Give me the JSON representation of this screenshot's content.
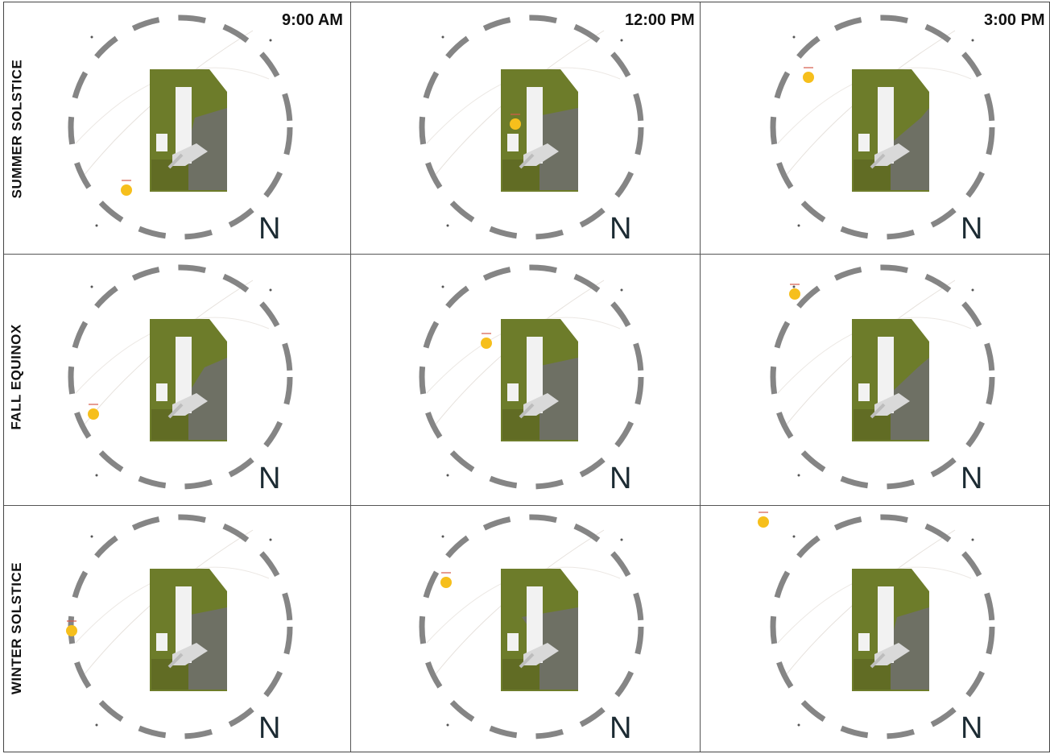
{
  "columns": [
    {
      "time_label": "9:00 AM"
    },
    {
      "time_label": "12:00 PM"
    },
    {
      "time_label": "3:00 PM"
    }
  ],
  "rows": [
    {
      "season_label": "SUMMER SOLSTICE"
    },
    {
      "season_label": "FALL EQUINOX"
    },
    {
      "season_label": "WINTER SOLSTICE"
    }
  ],
  "north_label": "N",
  "colors": {
    "site_green": "#6d7c2a",
    "sun": "#f6bf1c",
    "compass_dash": "#858585",
    "shadow": "#6e6e6e",
    "building": "#f2f2f2",
    "sun_label": "#d65a4a"
  }
}
